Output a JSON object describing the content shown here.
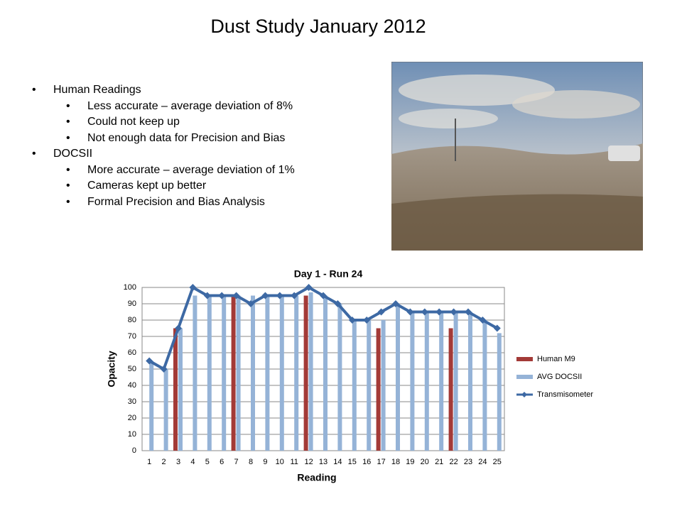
{
  "title": "Dust Study January 2012",
  "bullets": [
    {
      "text": "Human Readings",
      "children": [
        "Less accurate – average deviation of 8%",
        "Could not keep up",
        "Not enough data for Precision and Bias"
      ]
    },
    {
      "text": "DOCSII",
      "children": [
        "More accurate – average deviation of 1%",
        "Cameras kept up better",
        "Formal Precision and Bias Analysis"
      ]
    }
  ],
  "chart_data": {
    "type": "bar_line",
    "title": "Day 1 - Run 24",
    "x_label": "Reading",
    "y_label": "Opacity",
    "categories": [
      "1",
      "2",
      "3",
      "4",
      "5",
      "6",
      "7",
      "8",
      "9",
      "10",
      "11",
      "12",
      "13",
      "14",
      "15",
      "16",
      "17",
      "18",
      "19",
      "20",
      "21",
      "22",
      "23",
      "24",
      "25"
    ],
    "series": [
      {
        "name": "Human M9",
        "type": "bar",
        "color": "#a33a37",
        "values": [
          null,
          null,
          75,
          null,
          null,
          null,
          95,
          null,
          null,
          null,
          null,
          95,
          null,
          null,
          null,
          null,
          75,
          null,
          null,
          null,
          null,
          75,
          null,
          null,
          null
        ]
      },
      {
        "name": "AVG DOCSII",
        "type": "bar",
        "color": "#95b3d7",
        "values": [
          55,
          50,
          75,
          95,
          95,
          95,
          95,
          95,
          95,
          95,
          95,
          97,
          95,
          90,
          80,
          80,
          80,
          90,
          85,
          85,
          85,
          85,
          85,
          80,
          72
        ]
      },
      {
        "name": "Transmisometer",
        "type": "line",
        "color": "#3d69a4",
        "values": [
          55,
          50,
          75,
          100,
          95,
          95,
          95,
          90,
          95,
          95,
          95,
          100,
          95,
          90,
          80,
          80,
          85,
          90,
          85,
          85,
          85,
          85,
          85,
          80,
          75
        ]
      }
    ],
    "ylim": [
      0,
      100
    ],
    "yticks": [
      0,
      10,
      20,
      30,
      40,
      50,
      60,
      70,
      80,
      90,
      100
    ],
    "grid": true,
    "legend": "right"
  }
}
